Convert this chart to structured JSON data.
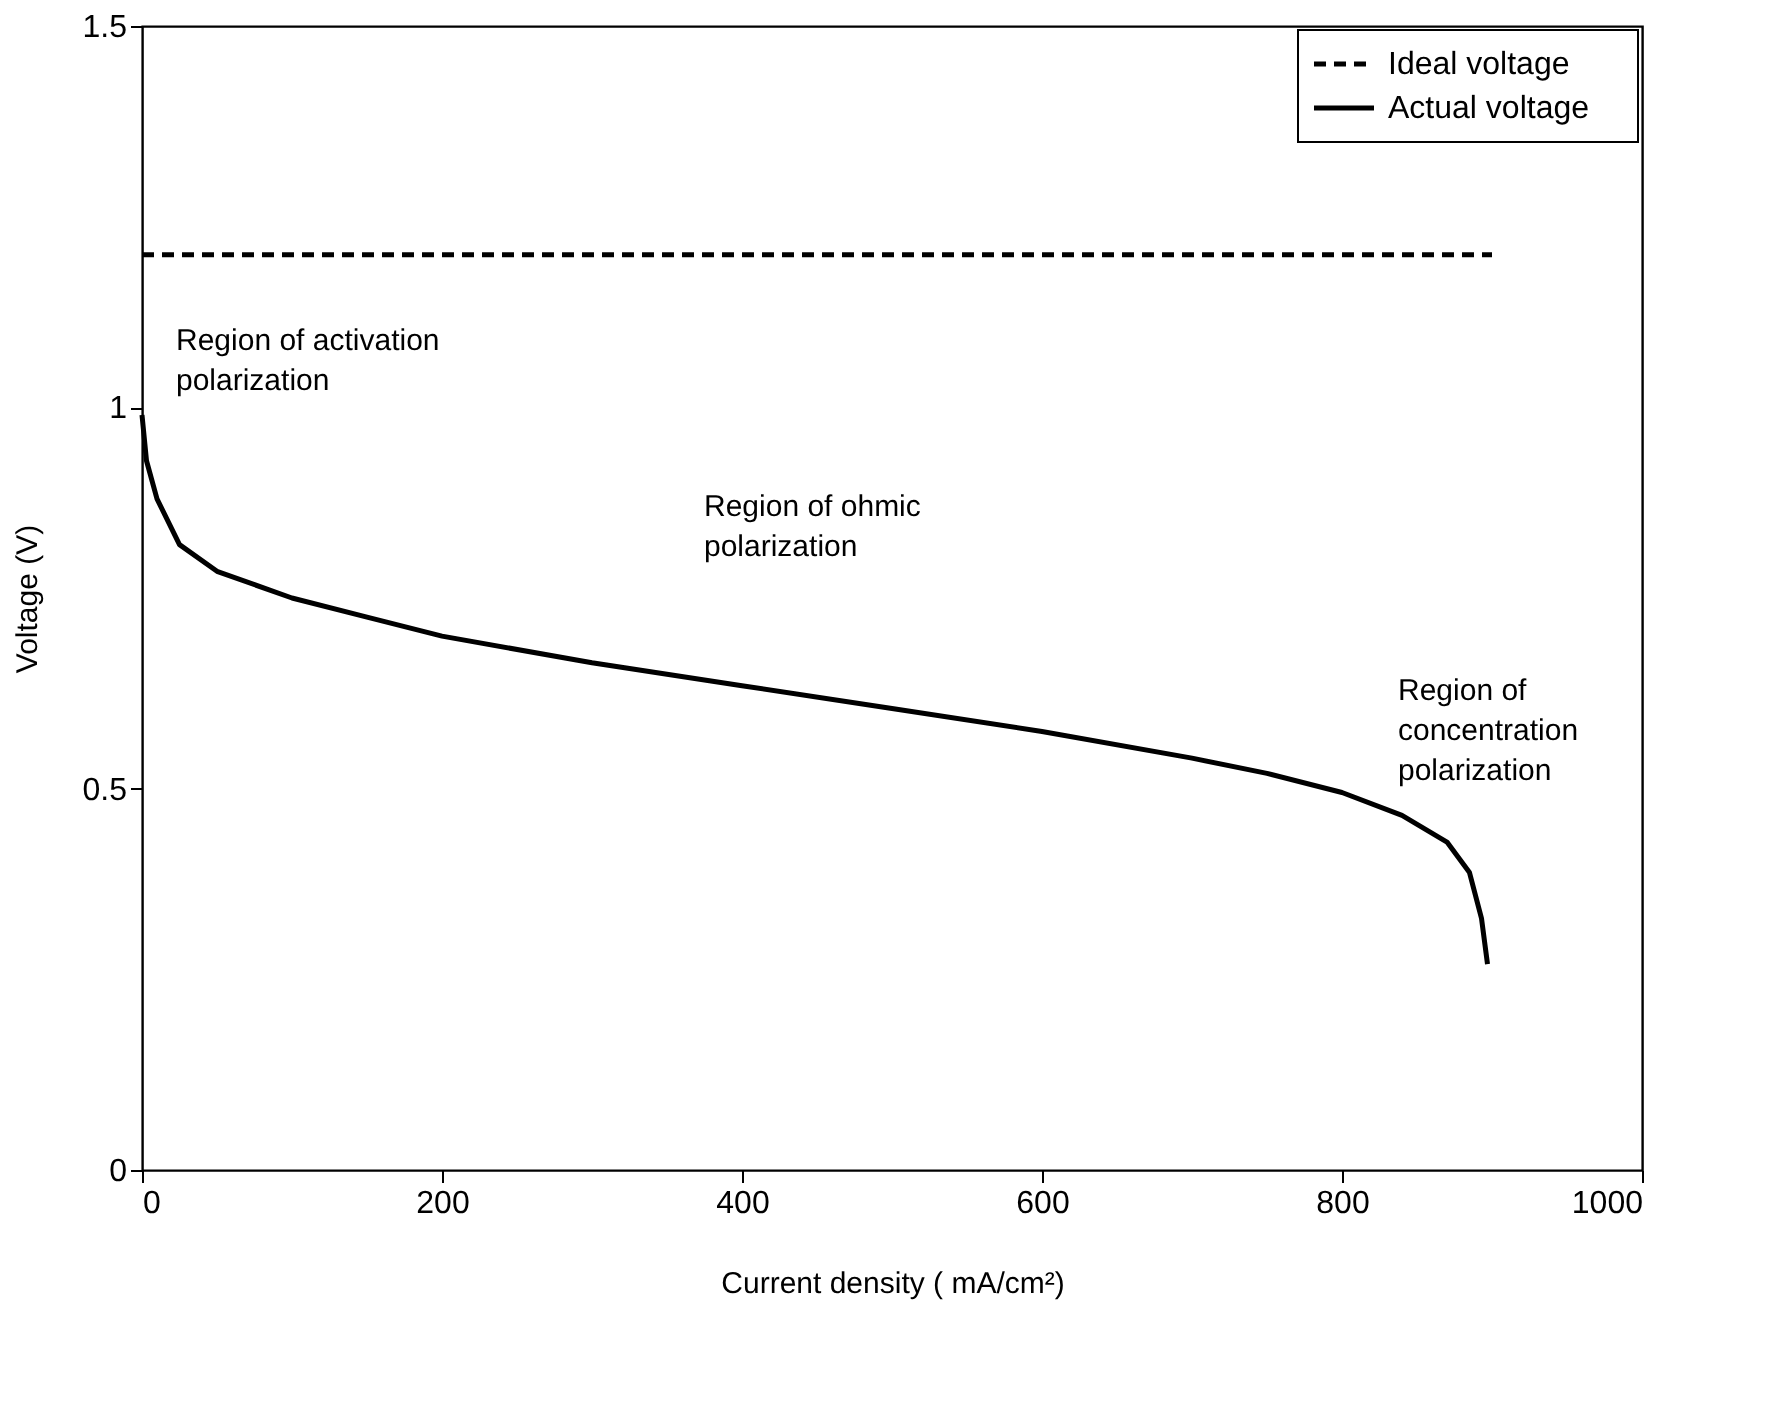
{
  "chart_data": {
    "type": "line",
    "xlabel": "Current density ( mA/cm²)",
    "ylabel": "Voltage (V)",
    "xlim": [
      0,
      1000
    ],
    "xticks": [
      0,
      200,
      400,
      600,
      800,
      1000
    ],
    "ylim": [
      0,
      1.5
    ],
    "yticks": [
      0,
      0.5,
      1,
      1.5
    ],
    "grid": false,
    "legend": "top right",
    "marker": "none",
    "series": [
      {
        "name": "Ideal voltage",
        "color": "#000000",
        "line_style": "dashed",
        "x": [
          0,
          900
        ],
        "values": [
          1.2,
          1.2
        ]
      },
      {
        "name": "Actual voltage",
        "color": "#000000",
        "line_style": "solid",
        "x": [
          0,
          3,
          10,
          25,
          50,
          100,
          150,
          200,
          300,
          400,
          500,
          600,
          700,
          750,
          800,
          840,
          870,
          885,
          893,
          897
        ],
        "values": [
          0.99,
          0.93,
          0.88,
          0.82,
          0.785,
          0.75,
          0.725,
          0.7,
          0.665,
          0.635,
          0.605,
          0.575,
          0.54,
          0.52,
          0.495,
          0.465,
          0.43,
          0.39,
          0.33,
          0.27
        ]
      }
    ],
    "annotations": [
      "Region of activation\npolarization",
      "Region of ohmic\npolarization",
      "Region of\nconcentration\npolarization"
    ]
  }
}
